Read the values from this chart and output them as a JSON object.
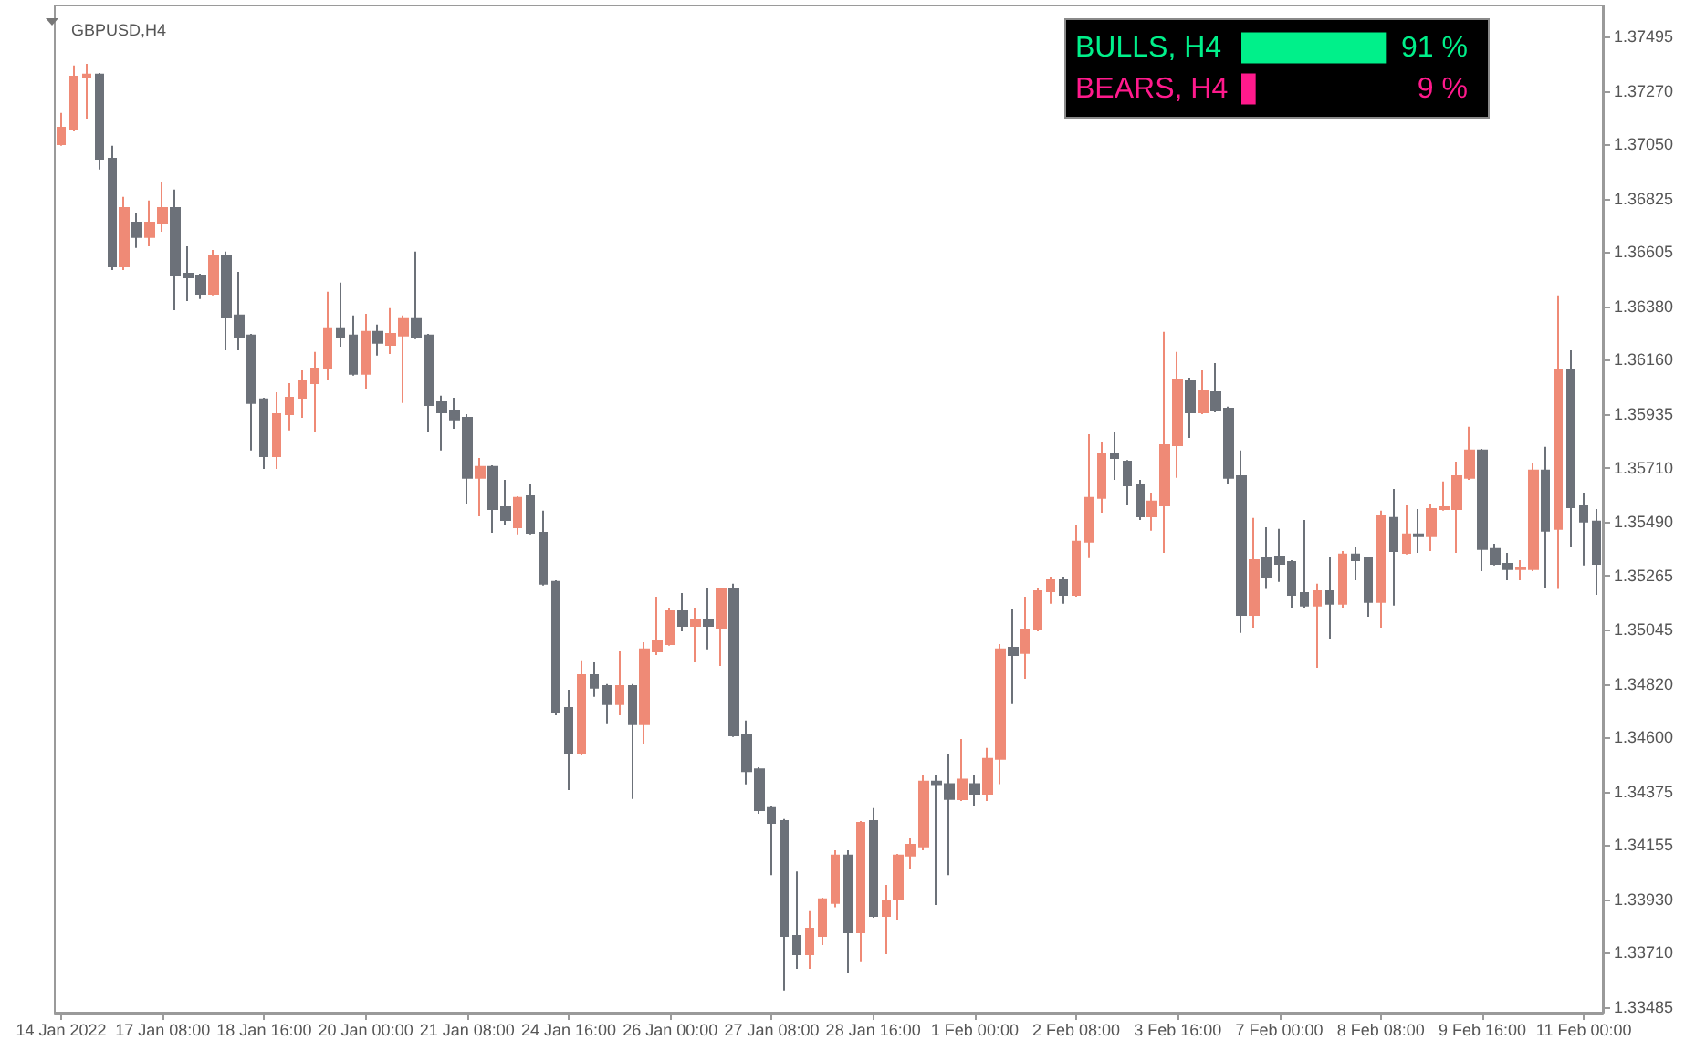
{
  "chart_data": [
    {
      "type": "candlestick",
      "title": "GBPUSD,H4",
      "categories": [
        "14 Jan 2022",
        null,
        null,
        null,
        null,
        null,
        null,
        null,
        "17 Jan 08:00",
        null,
        null,
        null,
        null,
        null,
        null,
        null,
        "18 Jan 16:00",
        null,
        null,
        null,
        null,
        null,
        null,
        null,
        "20 Jan 00:00",
        null,
        null,
        null,
        null,
        null,
        null,
        null,
        "21 Jan 08:00",
        null,
        null,
        null,
        null,
        null,
        null,
        null,
        "24 Jan 16:00",
        null,
        null,
        null,
        null,
        null,
        null,
        null,
        "26 Jan 00:00",
        null,
        null,
        null,
        null,
        null,
        null,
        null,
        "27 Jan 08:00",
        null,
        null,
        null,
        null,
        null,
        null,
        null,
        "28 Jan 16:00",
        null,
        null,
        null,
        null,
        null,
        null,
        null,
        "1 Feb 00:00",
        null,
        null,
        null,
        null,
        null,
        null,
        null,
        "2 Feb 08:00",
        null,
        null,
        null,
        null,
        null,
        null,
        null,
        "3 Feb 16:00",
        null,
        null,
        null,
        null,
        null,
        null,
        null,
        "7 Feb 00:00",
        null,
        null,
        null,
        null,
        null,
        null,
        null,
        "8 Feb 08:00",
        null,
        null,
        null,
        null,
        null,
        null,
        null,
        "9 Feb 16:00",
        null,
        null,
        null,
        null,
        null,
        null,
        null,
        "11 Feb 00:00",
        null
      ],
      "colors": [
        "#ef8a76",
        "#ef8a76",
        "#ef8a76",
        "#6c7179",
        "#6c7179",
        "#ef8a76",
        "#6c7179",
        "#ef8a76",
        "#ef8a76",
        "#6c7179",
        "#6c7179",
        "#6c7179",
        "#ef8a76",
        "#6c7179",
        "#6c7179",
        "#6c7179",
        "#6c7179",
        "#ef8a76",
        "#ef8a76",
        "#ef8a76",
        "#ef8a76",
        "#ef8a76",
        "#6c7179",
        "#6c7179",
        "#ef8a76",
        "#6c7179",
        "#ef8a76",
        "#ef8a76",
        "#6c7179",
        "#6c7179",
        "#6c7179",
        "#6c7179",
        "#6c7179",
        "#ef8a76",
        "#6c7179",
        "#6c7179",
        "#ef8a76",
        "#6c7179",
        "#6c7179",
        "#6c7179",
        "#6c7179",
        "#ef8a76",
        "#6c7179",
        "#6c7179",
        "#ef8a76",
        "#6c7179",
        "#ef8a76",
        "#ef8a76",
        "#ef8a76",
        "#6c7179",
        "#ef8a76",
        "#6c7179",
        "#ef8a76",
        "#6c7179",
        "#6c7179",
        "#6c7179",
        "#6c7179",
        "#6c7179",
        "#6c7179",
        "#ef8a76",
        "#ef8a76",
        "#ef8a76",
        "#6c7179",
        "#ef8a76",
        "#6c7179",
        "#ef8a76",
        "#ef8a76",
        "#ef8a76",
        "#ef8a76",
        "#6c7179",
        "#6c7179",
        "#ef8a76",
        "#6c7179",
        "#ef8a76",
        "#ef8a76",
        "#6c7179",
        "#ef8a76",
        "#ef8a76",
        "#ef8a76",
        "#6c7179",
        "#ef8a76",
        "#ef8a76",
        "#ef8a76",
        "#6c7179",
        "#6c7179",
        "#6c7179",
        "#ef8a76",
        "#ef8a76",
        "#ef8a76",
        "#6c7179",
        "#ef8a76",
        "#6c7179",
        "#6c7179",
        "#6c7179",
        "#ef8a76",
        "#6c7179",
        "#6c7179",
        "#6c7179",
        "#6c7179",
        "#ef8a76",
        "#6c7179",
        "#ef8a76",
        "#6c7179",
        "#6c7179",
        "#ef8a76",
        "#6c7179",
        "#ef8a76",
        "#6c7179",
        "#ef8a76",
        "#ef8a76",
        "#ef8a76",
        "#ef8a76",
        "#6c7179",
        "#6c7179",
        "#6c7179",
        "#ef8a76",
        "#ef8a76",
        "#6c7179",
        "#ef8a76",
        "#6c7179",
        "#6c7179",
        "#6c7179"
      ],
      "ylim": [
        1.33461,
        1.37623
      ],
      "yticks": [
        {
          "value": 1.33485,
          "label": "1.33485"
        },
        {
          "value": 1.3371,
          "label": "1.33710"
        },
        {
          "value": 1.3393,
          "label": "1.33930"
        },
        {
          "value": 1.34155,
          "label": "1.34155"
        },
        {
          "value": 1.34375,
          "label": "1.34375"
        },
        {
          "value": 1.346,
          "label": "1.34600"
        },
        {
          "value": 1.3482,
          "label": "1.34820"
        },
        {
          "value": 1.35045,
          "label": "1.35045"
        },
        {
          "value": 1.35265,
          "label": "1.35265"
        },
        {
          "value": 1.3549,
          "label": "1.35490"
        },
        {
          "value": 1.3571,
          "label": "1.35710"
        },
        {
          "value": 1.35935,
          "label": "1.35935"
        },
        {
          "value": 1.3616,
          "label": "1.36160"
        },
        {
          "value": 1.3638,
          "label": "1.36380"
        },
        {
          "value": 1.36605,
          "label": "1.36605"
        },
        {
          "value": 1.36825,
          "label": "1.36825"
        },
        {
          "value": 1.3705,
          "label": "1.37050"
        },
        {
          "value": 1.3727,
          "label": "1.37270"
        },
        {
          "value": 1.37495,
          "label": "1.37495"
        }
      ],
      "grid": false,
      "ohlc": [
        [
          1.3705,
          1.37179,
          1.37043,
          1.37118
        ],
        [
          1.37111,
          1.37375,
          1.37103,
          1.37329
        ],
        [
          1.37329,
          1.37382,
          1.37156,
          1.37337
        ],
        [
          1.37337,
          1.37344,
          1.36945,
          1.3699
        ],
        [
          1.3699,
          1.37043,
          1.3653,
          1.36545
        ],
        [
          1.36545,
          1.36832,
          1.3653,
          1.36786
        ],
        [
          1.36726,
          1.36764,
          1.36621,
          1.36666
        ],
        [
          1.36666,
          1.36817,
          1.36628,
          1.36726
        ],
        [
          1.36726,
          1.36892,
          1.36688,
          1.36786
        ],
        [
          1.36786,
          1.36862,
          1.36364,
          1.36507
        ],
        [
          1.36515,
          1.36628,
          1.36402,
          1.365
        ],
        [
          1.36507,
          1.36515,
          1.3641,
          1.36432
        ],
        [
          1.36432,
          1.36613,
          1.36425,
          1.3659
        ],
        [
          1.3659,
          1.36606,
          1.36198,
          1.36334
        ],
        [
          1.36342,
          1.36522,
          1.36198,
          1.36251
        ],
        [
          1.36259,
          1.36266,
          1.35784,
          1.3598
        ],
        [
          1.35995,
          1.36002,
          1.35708,
          1.35761
        ],
        [
          1.35761,
          1.36025,
          1.35708,
          1.35934
        ],
        [
          1.35934,
          1.36062,
          1.35867,
          1.36002
        ],
        [
          1.36002,
          1.36115,
          1.35919,
          1.3607
        ],
        [
          1.36062,
          1.36191,
          1.35859,
          1.36123
        ],
        [
          1.36123,
          1.3644,
          1.36077,
          1.36289
        ],
        [
          1.36289,
          1.36478,
          1.36213,
          1.36251
        ],
        [
          1.36259,
          1.36342,
          1.36093,
          1.36101
        ],
        [
          1.36101,
          1.36349,
          1.3604,
          1.36274
        ],
        [
          1.36274,
          1.36304,
          1.36176,
          1.36229
        ],
        [
          1.36221,
          1.36372,
          1.36183,
          1.36266
        ],
        [
          1.36259,
          1.36342,
          1.3598,
          1.36327
        ],
        [
          1.36327,
          1.36606,
          1.36244,
          1.36251
        ],
        [
          1.36259,
          1.36266,
          1.35859,
          1.35972
        ],
        [
          1.35987,
          1.3601,
          1.35784,
          1.35942
        ],
        [
          1.35949,
          1.36002,
          1.35874,
          1.35912
        ],
        [
          1.35919,
          1.35934,
          1.35565,
          1.35671
        ],
        [
          1.35671,
          1.35753,
          1.35512,
          1.35716
        ],
        [
          1.35716,
          1.35723,
          1.35444,
          1.35542
        ],
        [
          1.3555,
          1.35663,
          1.35474,
          1.35497
        ],
        [
          1.35467,
          1.35595,
          1.35437,
          1.35588
        ],
        [
          1.35595,
          1.35648,
          1.35437,
          1.35444
        ],
        [
          1.35444,
          1.35535,
          1.35226,
          1.35234
        ],
        [
          1.35241,
          1.35248,
          1.3469,
          1.34705
        ],
        [
          1.3472,
          1.34796,
          1.34381,
          1.34532
        ],
        [
          1.34532,
          1.34917,
          1.34524,
          1.34856
        ],
        [
          1.34856,
          1.34909,
          1.34766,
          1.34804
        ],
        [
          1.34811,
          1.34819,
          1.34653,
          1.34736
        ],
        [
          1.34736,
          1.34954,
          1.3469,
          1.34811
        ],
        [
          1.34811,
          1.34819,
          1.34344,
          1.34653
        ],
        [
          1.34653,
          1.34992,
          1.34569,
          1.34962
        ],
        [
          1.34954,
          1.3518,
          1.34939,
          1.34995
        ],
        [
          1.34984,
          1.35135,
          1.34977,
          1.3512
        ],
        [
          1.3512,
          1.35195,
          1.35037,
          1.35059
        ],
        [
          1.35059,
          1.35135,
          1.34909,
          1.35082
        ],
        [
          1.35082,
          1.35218,
          1.34962,
          1.35059
        ],
        [
          1.35052,
          1.35218,
          1.34894,
          1.35212
        ],
        [
          1.35212,
          1.35234,
          1.346,
          1.34607
        ],
        [
          1.34607,
          1.34668,
          1.34404,
          1.34459
        ],
        [
          1.34467,
          1.34475,
          1.34283,
          1.34298
        ],
        [
          1.34306,
          1.34313,
          1.34029,
          1.34245
        ],
        [
          1.34253,
          1.34261,
          1.33552,
          1.33778
        ],
        [
          1.33778,
          1.34044,
          1.33642,
          1.33702
        ],
        [
          1.33702,
          1.33884,
          1.33642,
          1.33808
        ],
        [
          1.33778,
          1.33936,
          1.3374,
          1.33929
        ],
        [
          1.33914,
          1.34132,
          1.33896,
          1.3411
        ],
        [
          1.3411,
          1.34132,
          1.33627,
          1.33793
        ],
        [
          1.33793,
          1.34253,
          1.33673,
          1.34245
        ],
        [
          1.34253,
          1.34306,
          1.33853,
          1.33861
        ],
        [
          1.33861,
          1.33989,
          1.33702,
          1.33921
        ],
        [
          1.33929,
          1.34117,
          1.33846,
          1.3411
        ],
        [
          1.3411,
          1.34185,
          1.34056,
          1.34155
        ],
        [
          1.34148,
          1.34444,
          1.34132,
          1.34416
        ],
        [
          1.34416,
          1.34444,
          1.33906,
          1.34405
        ],
        [
          1.34405,
          1.34532,
          1.34029,
          1.34344
        ],
        [
          1.34343,
          1.34592,
          1.34336,
          1.34424
        ],
        [
          1.34405,
          1.34444,
          1.34313,
          1.34366
        ],
        [
          1.34366,
          1.34555,
          1.34336,
          1.3451
        ],
        [
          1.3451,
          1.34984,
          1.34405,
          1.34962
        ],
        [
          1.34969,
          1.35128,
          1.34736,
          1.34939
        ],
        [
          1.34947,
          1.3518,
          1.34841,
          1.35044
        ],
        [
          1.35045,
          1.35218,
          1.35037,
          1.35203
        ],
        [
          1.35203,
          1.35263,
          1.35151,
          1.35248
        ],
        [
          1.35248,
          1.35263,
          1.35151,
          1.35188
        ],
        [
          1.35188,
          1.35474,
          1.3518,
          1.35407
        ],
        [
          1.35407,
          1.35851,
          1.35339,
          1.35588
        ],
        [
          1.35588,
          1.35821,
          1.35527,
          1.35768
        ],
        [
          1.35768,
          1.35859,
          1.35663,
          1.35753
        ],
        [
          1.35738,
          1.35745,
          1.35557,
          1.3564
        ],
        [
          1.3564,
          1.35663,
          1.35497,
          1.35512
        ],
        [
          1.35512,
          1.3561,
          1.35452,
          1.35573
        ],
        [
          1.35557,
          1.36274,
          1.35361,
          1.35806
        ],
        [
          1.35806,
          1.36191,
          1.35671,
          1.36077
        ],
        [
          1.3607,
          1.36085,
          1.35836,
          1.35942
        ],
        [
          1.35942,
          1.36115,
          1.35934,
          1.36032
        ],
        [
          1.36025,
          1.36145,
          1.35942,
          1.35949
        ],
        [
          1.35957,
          1.35965,
          1.35648,
          1.35671
        ],
        [
          1.35678,
          1.35784,
          1.3503,
          1.35105
        ],
        [
          1.35105,
          1.35505,
          1.35052,
          1.35331
        ],
        [
          1.35339,
          1.35467,
          1.35212,
          1.35263
        ],
        [
          1.35346,
          1.3546,
          1.35241,
          1.35316
        ],
        [
          1.35323,
          1.35331,
          1.35135,
          1.35188
        ],
        [
          1.35195,
          1.35497,
          1.35135,
          1.35143
        ],
        [
          1.35143,
          1.35234,
          1.34886,
          1.35203
        ],
        [
          1.35203,
          1.35346,
          1.35007,
          1.35151
        ],
        [
          1.35151,
          1.35369,
          1.35135,
          1.35354
        ],
        [
          1.35354,
          1.35384,
          1.35248,
          1.35331
        ],
        [
          1.35339,
          1.35346,
          1.35097,
          1.35158
        ],
        [
          1.35158,
          1.35535,
          1.35052,
          1.35512
        ],
        [
          1.35505,
          1.35625,
          1.35143,
          1.35369
        ],
        [
          1.35361,
          1.35557,
          1.35354,
          1.35437
        ],
        [
          1.35437,
          1.35542,
          1.35361,
          1.3543
        ],
        [
          1.3543,
          1.35565,
          1.35369,
          1.35542
        ],
        [
          1.35542,
          1.35656,
          1.35535,
          1.3555
        ],
        [
          1.35542,
          1.35738,
          1.35361,
          1.35678
        ],
        [
          1.35671,
          1.35882,
          1.35663,
          1.35784
        ],
        [
          1.35784,
          1.35791,
          1.35286,
          1.35377
        ],
        [
          1.35377,
          1.35399,
          1.35309,
          1.35316
        ],
        [
          1.35316,
          1.35361,
          1.35248,
          1.35294
        ],
        [
          1.35294,
          1.35331,
          1.35248,
          1.35301
        ],
        [
          1.35294,
          1.35731,
          1.35286,
          1.35701
        ],
        [
          1.35701,
          1.35799,
          1.35218,
          1.35452
        ],
        [
          1.3546,
          1.36425,
          1.35212,
          1.36115
        ],
        [
          1.36115,
          1.36198,
          1.35384,
          1.3555
        ],
        [
          1.35557,
          1.3561,
          1.35309,
          1.3549
        ],
        [
          1.3549,
          1.35542,
          1.35188,
          1.35316
        ]
      ]
    },
    {
      "type": "bar",
      "orientation": "horizontal",
      "categories": [
        "BULLS, H4",
        "BEARS, H4"
      ],
      "values": [
        91,
        9
      ],
      "colors": [
        "#00f08a",
        "#ff1a8c"
      ],
      "value_labels": [
        "91 %",
        "9 %"
      ],
      "tick_labels": "y"
    }
  ]
}
